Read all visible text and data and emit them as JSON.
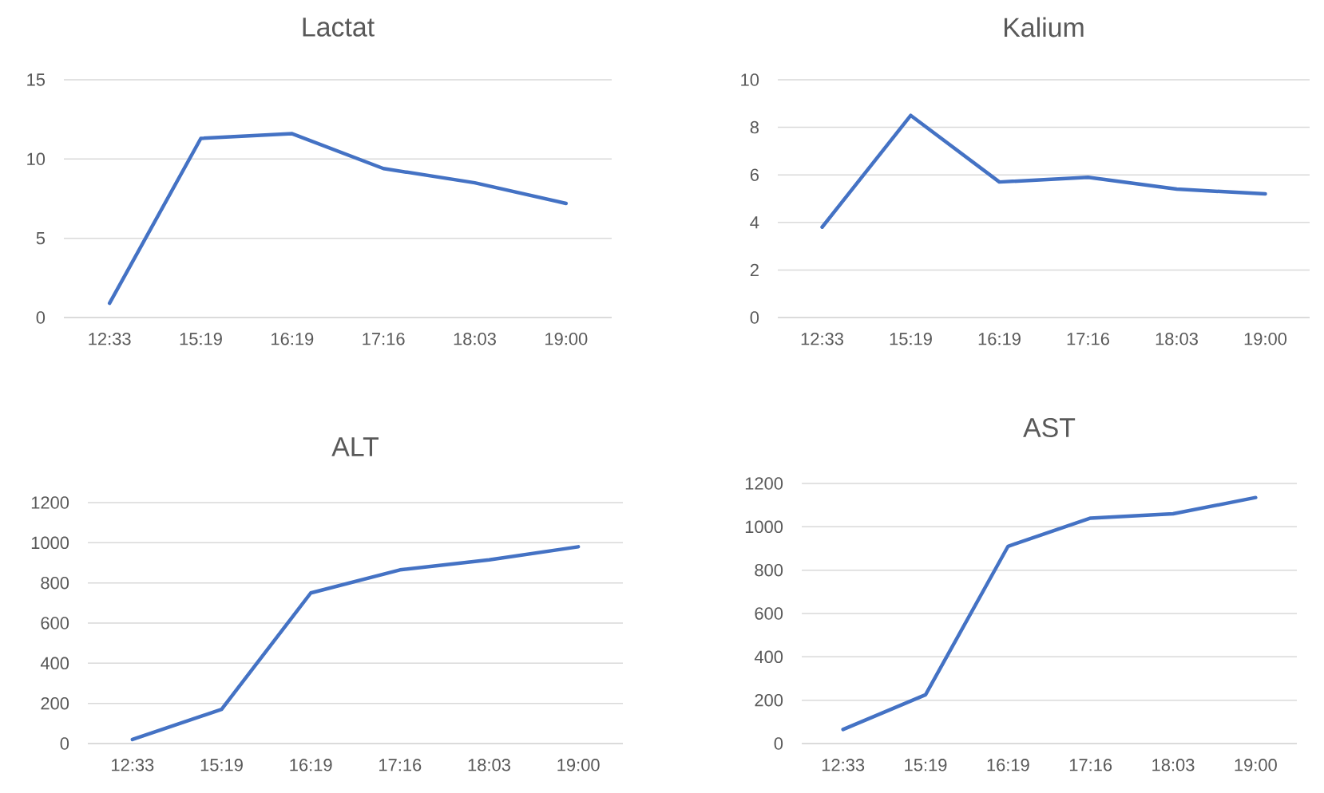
{
  "chart_data": [
    {
      "type": "line",
      "title": "Lactat",
      "categories": [
        "12:33",
        "15:19",
        "16:19",
        "17:16",
        "18:03",
        "19:00"
      ],
      "values": [
        0.9,
        11.3,
        11.6,
        9.4,
        8.5,
        7.2
      ],
      "color": "#4472c4",
      "ylim": [
        0,
        15
      ],
      "yticks": [
        0,
        5,
        10,
        15
      ],
      "grid": "y"
    },
    {
      "type": "line",
      "title": "Kalium",
      "categories": [
        "12:33",
        "15:19",
        "16:19",
        "17:16",
        "18:03",
        "19:00"
      ],
      "values": [
        3.8,
        8.5,
        5.7,
        5.9,
        5.4,
        5.2
      ],
      "color": "#4472c4",
      "ylim": [
        0,
        10
      ],
      "yticks": [
        0,
        2,
        4,
        6,
        8,
        10
      ],
      "grid": "y"
    },
    {
      "type": "line",
      "title": "ALT",
      "categories": [
        "12:33",
        "15:19",
        "16:19",
        "17:16",
        "18:03",
        "19:00"
      ],
      "values": [
        20,
        170,
        750,
        865,
        915,
        980
      ],
      "color": "#4472c4",
      "ylim": [
        0,
        1200
      ],
      "yticks": [
        0,
        200,
        400,
        600,
        800,
        1000,
        1200
      ],
      "grid": "y"
    },
    {
      "type": "line",
      "title": "AST",
      "categories": [
        "12:33",
        "15:19",
        "16:19",
        "17:16",
        "18:03",
        "19:00"
      ],
      "values": [
        65,
        225,
        910,
        1040,
        1060,
        1135
      ],
      "color": "#4472c4",
      "ylim": [
        0,
        1200
      ],
      "yticks": [
        0,
        200,
        400,
        600,
        800,
        1000,
        1200
      ],
      "grid": "y"
    }
  ]
}
